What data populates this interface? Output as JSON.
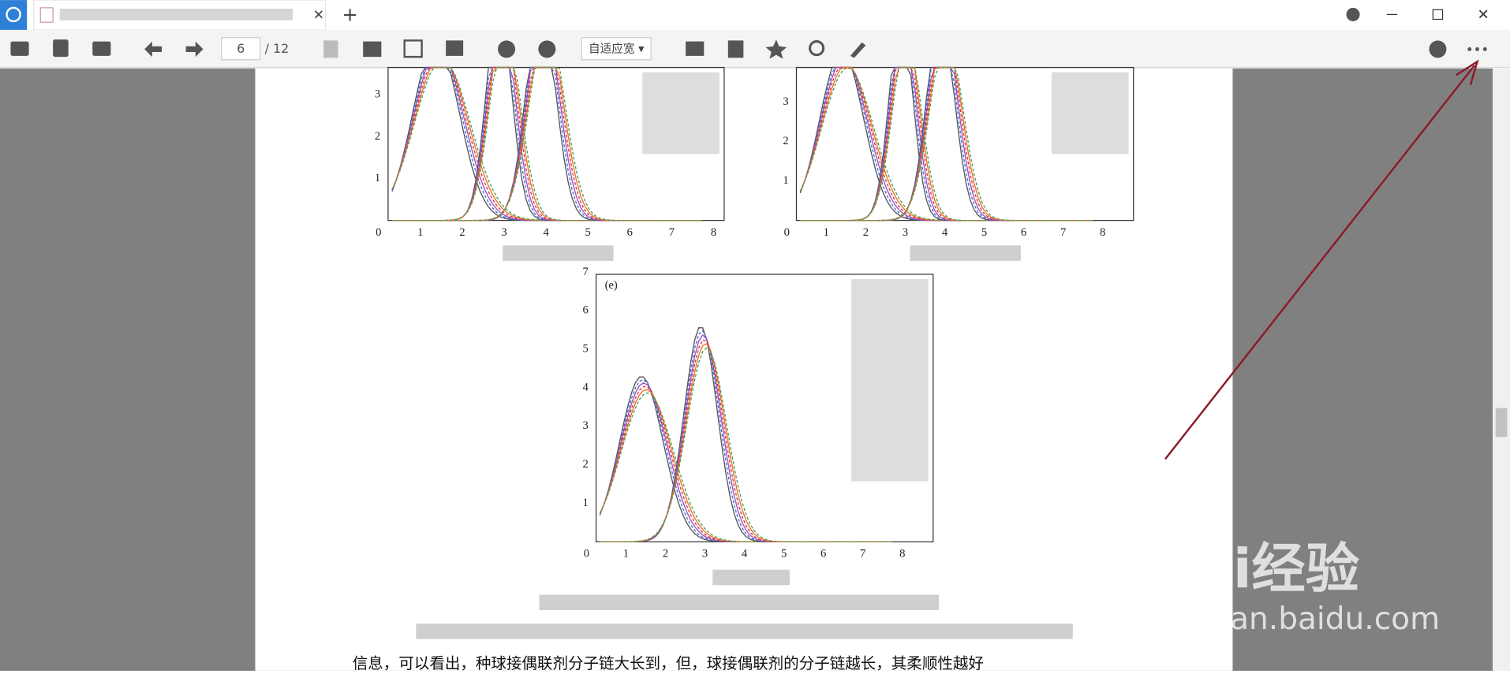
{
  "toolbar": {
    "page_input": "6",
    "page_total": "/ 12",
    "zoom": "自适应宽 ▾"
  },
  "document": {
    "figure_a": {
      "xticks": [
        "0",
        "1",
        "2",
        "3",
        "4",
        "5",
        "6",
        "7",
        "8"
      ],
      "yticks": [
        "1",
        "2",
        "3"
      ]
    },
    "figure_b": {
      "xticks": [
        "0",
        "1",
        "2",
        "3",
        "4",
        "5",
        "6",
        "7",
        "8"
      ],
      "yticks": [
        "1",
        "2",
        "3"
      ]
    },
    "figure_e": {
      "label": "(e)",
      "xticks": [
        "0",
        "1",
        "2",
        "3",
        "4",
        "5",
        "6",
        "7",
        "8"
      ],
      "yticks": [
        "1",
        "2",
        "3",
        "4",
        "5",
        "6",
        "7"
      ]
    },
    "body_text": "信息，可以看出，种球接偶联剂分子链大长到，但，球接偶联剂的分子链越长，其柔顺性越好"
  },
  "watermark": {
    "brand": "Bai经验",
    "url": "jingyan.baidu.com"
  }
}
